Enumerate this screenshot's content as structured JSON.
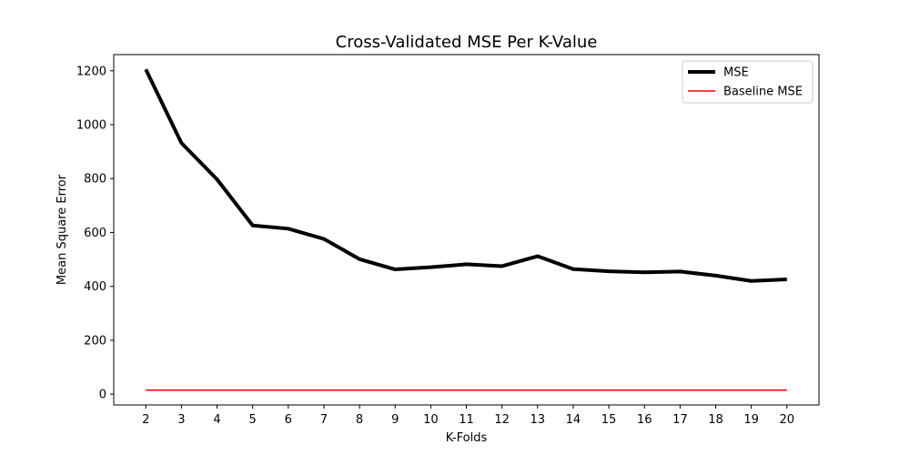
{
  "chart_data": {
    "type": "line",
    "title": "Cross-Validated MSE Per K-Value",
    "xlabel": "K-Folds",
    "ylabel": "Mean Square Error",
    "x": [
      2,
      3,
      4,
      5,
      6,
      7,
      8,
      9,
      10,
      11,
      12,
      13,
      14,
      15,
      16,
      17,
      18,
      19,
      20
    ],
    "xlim": [
      1.1,
      20.9
    ],
    "ylim": [
      -40,
      1260
    ],
    "yticks": [
      0,
      200,
      400,
      600,
      800,
      1000,
      1200
    ],
    "grid": false,
    "legend_position": "top-right",
    "series": [
      {
        "name": "MSE",
        "color": "#000000",
        "values": [
          1205,
          932,
          797,
          626,
          614,
          576,
          501,
          463,
          471,
          482,
          475,
          512,
          464,
          456,
          452,
          455,
          440,
          420,
          426
        ]
      },
      {
        "name": "Baseline MSE",
        "color": "#ff0000",
        "values": [
          15,
          15,
          15,
          15,
          15,
          15,
          15,
          15,
          15,
          15,
          15,
          15,
          15,
          15,
          15,
          15,
          15,
          15,
          15
        ]
      }
    ]
  }
}
